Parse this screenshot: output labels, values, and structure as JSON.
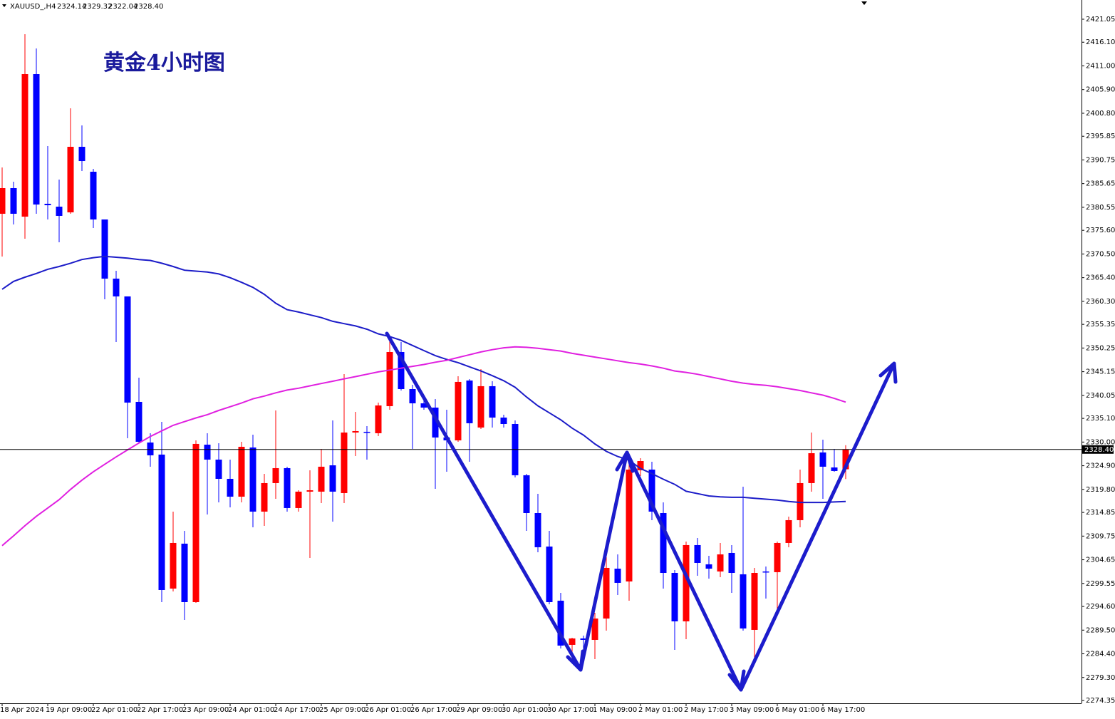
{
  "header": {
    "symbol": "XAUUSD_,H4"
  },
  "chart_data": {
    "type": "candlestick",
    "title": "黄金4小时图",
    "categories": [
      "18 Apr 2024",
      null,
      null,
      null,
      "19 Apr 09:00",
      null,
      null,
      null,
      "22 Apr 01:00",
      null,
      null,
      null,
      "22 Apr 17:00",
      null,
      null,
      null,
      "23 Apr 09:00",
      null,
      null,
      null,
      "24 Apr 01:00",
      null,
      null,
      null,
      "24 Apr 17:00",
      null,
      null,
      null,
      "25 Apr 09:00",
      null,
      null,
      null,
      "26 Apr 01:00",
      null,
      null,
      null,
      "26 Apr 17:00",
      null,
      null,
      null,
      "29 Apr 09:00",
      null,
      null,
      null,
      "30 Apr 01:00",
      null,
      null,
      null,
      "30 Apr 17:00",
      null,
      null,
      null,
      "1 May 09:00",
      null,
      null,
      null,
      "2 May 01:00",
      null,
      null,
      null,
      "2 May 17:00",
      null,
      null,
      null,
      "3 May 09:00",
      null,
      null,
      null,
      "6 May 01:00",
      null,
      null,
      null,
      "6 May 17:00",
      null,
      null
    ],
    "open": [
      2379.16,
      2384.68,
      2378.54,
      2409.23,
      2381.31,
      2380.69,
      2379.46,
      2393.58,
      2388.21,
      2377.93,
      2365.19,
      2361.36,
      2338.65,
      2329.9,
      2327.3,
      2298.45,
      2308.12,
      2295.53,
      2329.44,
      2326.22,
      2322.08,
      2318.24,
      2328.83,
      2315.02,
      2321.16,
      2324.38,
      2315.79,
      2319.32,
      2319.32,
      2324.99,
      2319.01,
      2332.05,
      2332.21,
      2331.9,
      2337.73,
      2349.39,
      2341.41,
      2338.34,
      2337.42,
      2330.98,
      2330.36,
      2343.25,
      2333.13,
      2342.03,
      2335.27,
      2333.89,
      2322.85,
      2314.71,
      2307.5,
      2295.84,
      2286.33,
      2287.71,
      2287.4,
      2292.0,
      2302.74,
      2299.98,
      2323.92,
      2324.07,
      2314.71,
      2301.82,
      2291.39,
      2307.81,
      2303.67,
      2302.13,
      2306.12,
      2301.52,
      2289.55,
      2302.13,
      2301.98,
      2308.27,
      2313.18,
      2321.16,
      2327.76,
      2324.53,
      2324.14
    ],
    "high": [
      2389.13,
      2386.06,
      2417.82,
      2414.76,
      2393.73,
      2386.52,
      2401.87,
      2398.18,
      2388.82,
      2377.93,
      2366.88,
      2361.36,
      2343.87,
      2331.9,
      2334.35,
      2315.02,
      2310.88,
      2330.36,
      2331.9,
      2329.75,
      2326.22,
      2330.06,
      2331.59,
      2323.15,
      2336.81,
      2324.69,
      2319.62,
      2323.92,
      2328.52,
      2334.66,
      2344.63,
      2336.5,
      2333.43,
      2338.5,
      2352.31,
      2351.54,
      2342.33,
      2339.26,
      2339.26,
      2336.96,
      2344.17,
      2343.56,
      2345.71,
      2343.1,
      2335.89,
      2334.66,
      2323.15,
      2318.86,
      2310.88,
      2297.53,
      2287.86,
      2288.32,
      2293.23,
      2305.2,
      2305.81,
      2326.99,
      2326.53,
      2325.76,
      2317.01,
      2302.44,
      2308.58,
      2309.34,
      2305.51,
      2308.27,
      2307.81,
      2320.39,
      2302.9,
      2303.21,
      2308.58,
      2313.95,
      2324.07,
      2332.05,
      2330.52,
      2328.52,
      2329.32
    ],
    "low": [
      2369.95,
      2376.86,
      2373.79,
      2379.16,
      2377.93,
      2373.02,
      2379.16,
      2388.36,
      2376.09,
      2360.75,
      2351.54,
      2330.82,
      2329.75,
      2324.69,
      2295.53,
      2297.83,
      2291.7,
      2295.38,
      2314.41,
      2317.01,
      2315.94,
      2317.01,
      2311.64,
      2311.95,
      2317.78,
      2315.02,
      2315.02,
      2305.05,
      2316.86,
      2312.87,
      2316.86,
      2326.99,
      2326.22,
      2331.28,
      2336.96,
      2341.1,
      2328.52,
      2336.96,
      2319.93,
      2323.61,
      2330.06,
      2325.76,
      2332.82,
      2333.13,
      2333.13,
      2322.39,
      2310.88,
      2306.27,
      2295.07,
      2285.56,
      2283.26,
      2282.49,
      2283.26,
      2289.4,
      2297.07,
      2295.84,
      2322.69,
      2313.18,
      2298.45,
      2285.25,
      2287.55,
      2301.21,
      2300.6,
      2300.9,
      2297.53,
      2289.4,
      2283.26,
      2296.3,
      2293.23,
      2307.35,
      2311.64,
      2319.32,
      2317.78,
      2323.61,
      2322.04
    ],
    "close": [
      2384.68,
      2379.16,
      2409.23,
      2381.15,
      2381.0,
      2378.7,
      2393.58,
      2390.51,
      2377.93,
      2365.19,
      2361.36,
      2338.5,
      2330.06,
      2327.14,
      2298.14,
      2308.27,
      2295.53,
      2329.6,
      2326.22,
      2322.08,
      2318.24,
      2328.98,
      2315.02,
      2321.16,
      2324.38,
      2315.79,
      2319.32,
      2319.62,
      2324.69,
      2319.32,
      2332.05,
      2332.36,
      2332.05,
      2337.88,
      2349.39,
      2341.41,
      2338.34,
      2337.42,
      2330.98,
      2330.36,
      2342.95,
      2334.05,
      2342.03,
      2335.27,
      2333.89,
      2322.85,
      2314.71,
      2307.35,
      2295.53,
      2286.17,
      2287.71,
      2287.4,
      2292.0,
      2302.9,
      2299.68,
      2324.07,
      2325.91,
      2315.02,
      2301.82,
      2291.39,
      2307.81,
      2303.97,
      2302.74,
      2305.81,
      2301.82,
      2289.86,
      2301.82,
      2301.98,
      2308.27,
      2313.18,
      2321.16,
      2327.6,
      2324.69,
      2323.77,
      2328.4
    ],
    "up_color": "#ff0000",
    "down_color": "#0000ff",
    "moving_averages": [
      {
        "color": "#1c1cc8",
        "values": [
          2362.9,
          2364.6,
          2365.5,
          2366.3,
          2367.2,
          2367.8,
          2368.5,
          2369.3,
          2369.7,
          2370.0,
          2369.8,
          2369.6,
          2369.3,
          2369.1,
          2368.5,
          2367.8,
          2367.0,
          2366.8,
          2366.6,
          2366.2,
          2365.4,
          2364.4,
          2363.3,
          2361.8,
          2359.9,
          2358.5,
          2358.0,
          2357.4,
          2356.8,
          2356.0,
          2355.5,
          2355.0,
          2354.3,
          2353.3,
          2352.7,
          2351.9,
          2350.8,
          2349.7,
          2348.6,
          2347.8,
          2347.1,
          2346.2,
          2345.3,
          2344.3,
          2343.2,
          2341.8,
          2339.7,
          2337.8,
          2336.3,
          2334.8,
          2333.0,
          2331.5,
          2329.6,
          2328.0,
          2326.9,
          2326.1,
          2324.3,
          2323.2,
          2322.0,
          2320.9,
          2319.4,
          2318.9,
          2318.4,
          2318.2,
          2318.1,
          2318.1,
          2317.9,
          2317.7,
          2317.5,
          2317.2,
          2317.0,
          2317.0,
          2317.0,
          2317.1,
          2317.2
        ]
      },
      {
        "color": "#e020e0",
        "values": [
          2307.7,
          2309.8,
          2312.0,
          2314.0,
          2315.8,
          2317.6,
          2319.8,
          2321.8,
          2323.6,
          2325.2,
          2326.8,
          2328.3,
          2329.8,
          2331.2,
          2332.4,
          2333.6,
          2334.4,
          2335.2,
          2335.9,
          2336.8,
          2337.6,
          2338.4,
          2339.3,
          2339.9,
          2340.6,
          2341.2,
          2341.6,
          2342.1,
          2342.6,
          2343.1,
          2343.6,
          2344.1,
          2344.6,
          2345.1,
          2345.5,
          2345.9,
          2346.3,
          2346.7,
          2347.2,
          2347.6,
          2348.2,
          2348.8,
          2349.4,
          2349.9,
          2350.3,
          2350.5,
          2350.4,
          2350.2,
          2349.9,
          2349.6,
          2349.1,
          2348.7,
          2348.3,
          2347.9,
          2347.5,
          2347.1,
          2346.8,
          2346.4,
          2345.9,
          2345.3,
          2345.0,
          2344.6,
          2344.1,
          2343.6,
          2343.1,
          2342.7,
          2342.4,
          2342.2,
          2341.9,
          2341.5,
          2341.1,
          2340.6,
          2340.1,
          2339.4,
          2338.6
        ]
      }
    ],
    "last_price": {
      "value": 2328.4,
      "label": "2328.40"
    },
    "ylim": [
      2273.74,
      2425.19
    ],
    "yticks": [
      2421.05,
      {
        "value": 2416.1,
        "label": "2416.10"
      },
      {
        "value": 2411,
        "label": "2411.00"
      },
      {
        "value": 2405.9,
        "label": "2405.90"
      },
      {
        "value": 2400.8,
        "label": "2400.80"
      },
      2395.85,
      2390.75,
      2385.65,
      2380.55,
      {
        "value": 2375.6,
        "label": "2375.60"
      },
      {
        "value": 2370.5,
        "label": "2370.50"
      },
      {
        "value": 2365.4,
        "label": "2365.40"
      },
      {
        "value": 2360.3,
        "label": "2360.30"
      },
      2355.35,
      2350.25,
      2345.15,
      2340.05,
      {
        "value": 2335.1,
        "label": "2335.10"
      },
      {
        "value": 2330,
        "label": "2330.00"
      },
      {
        "value": 2324.9,
        "label": "2324.90"
      },
      {
        "value": 2319.8,
        "label": "2319.80"
      },
      2314.85,
      2309.75,
      2304.65,
      2299.55,
      {
        "value": 2294.6,
        "label": "2294.60"
      },
      {
        "value": 2289.5,
        "label": "2289.50"
      },
      {
        "value": 2284.4,
        "label": "2284.40"
      },
      {
        "value": 2279.3,
        "label": "2279.30"
      },
      2274.35
    ],
    "grid": false
  }
}
